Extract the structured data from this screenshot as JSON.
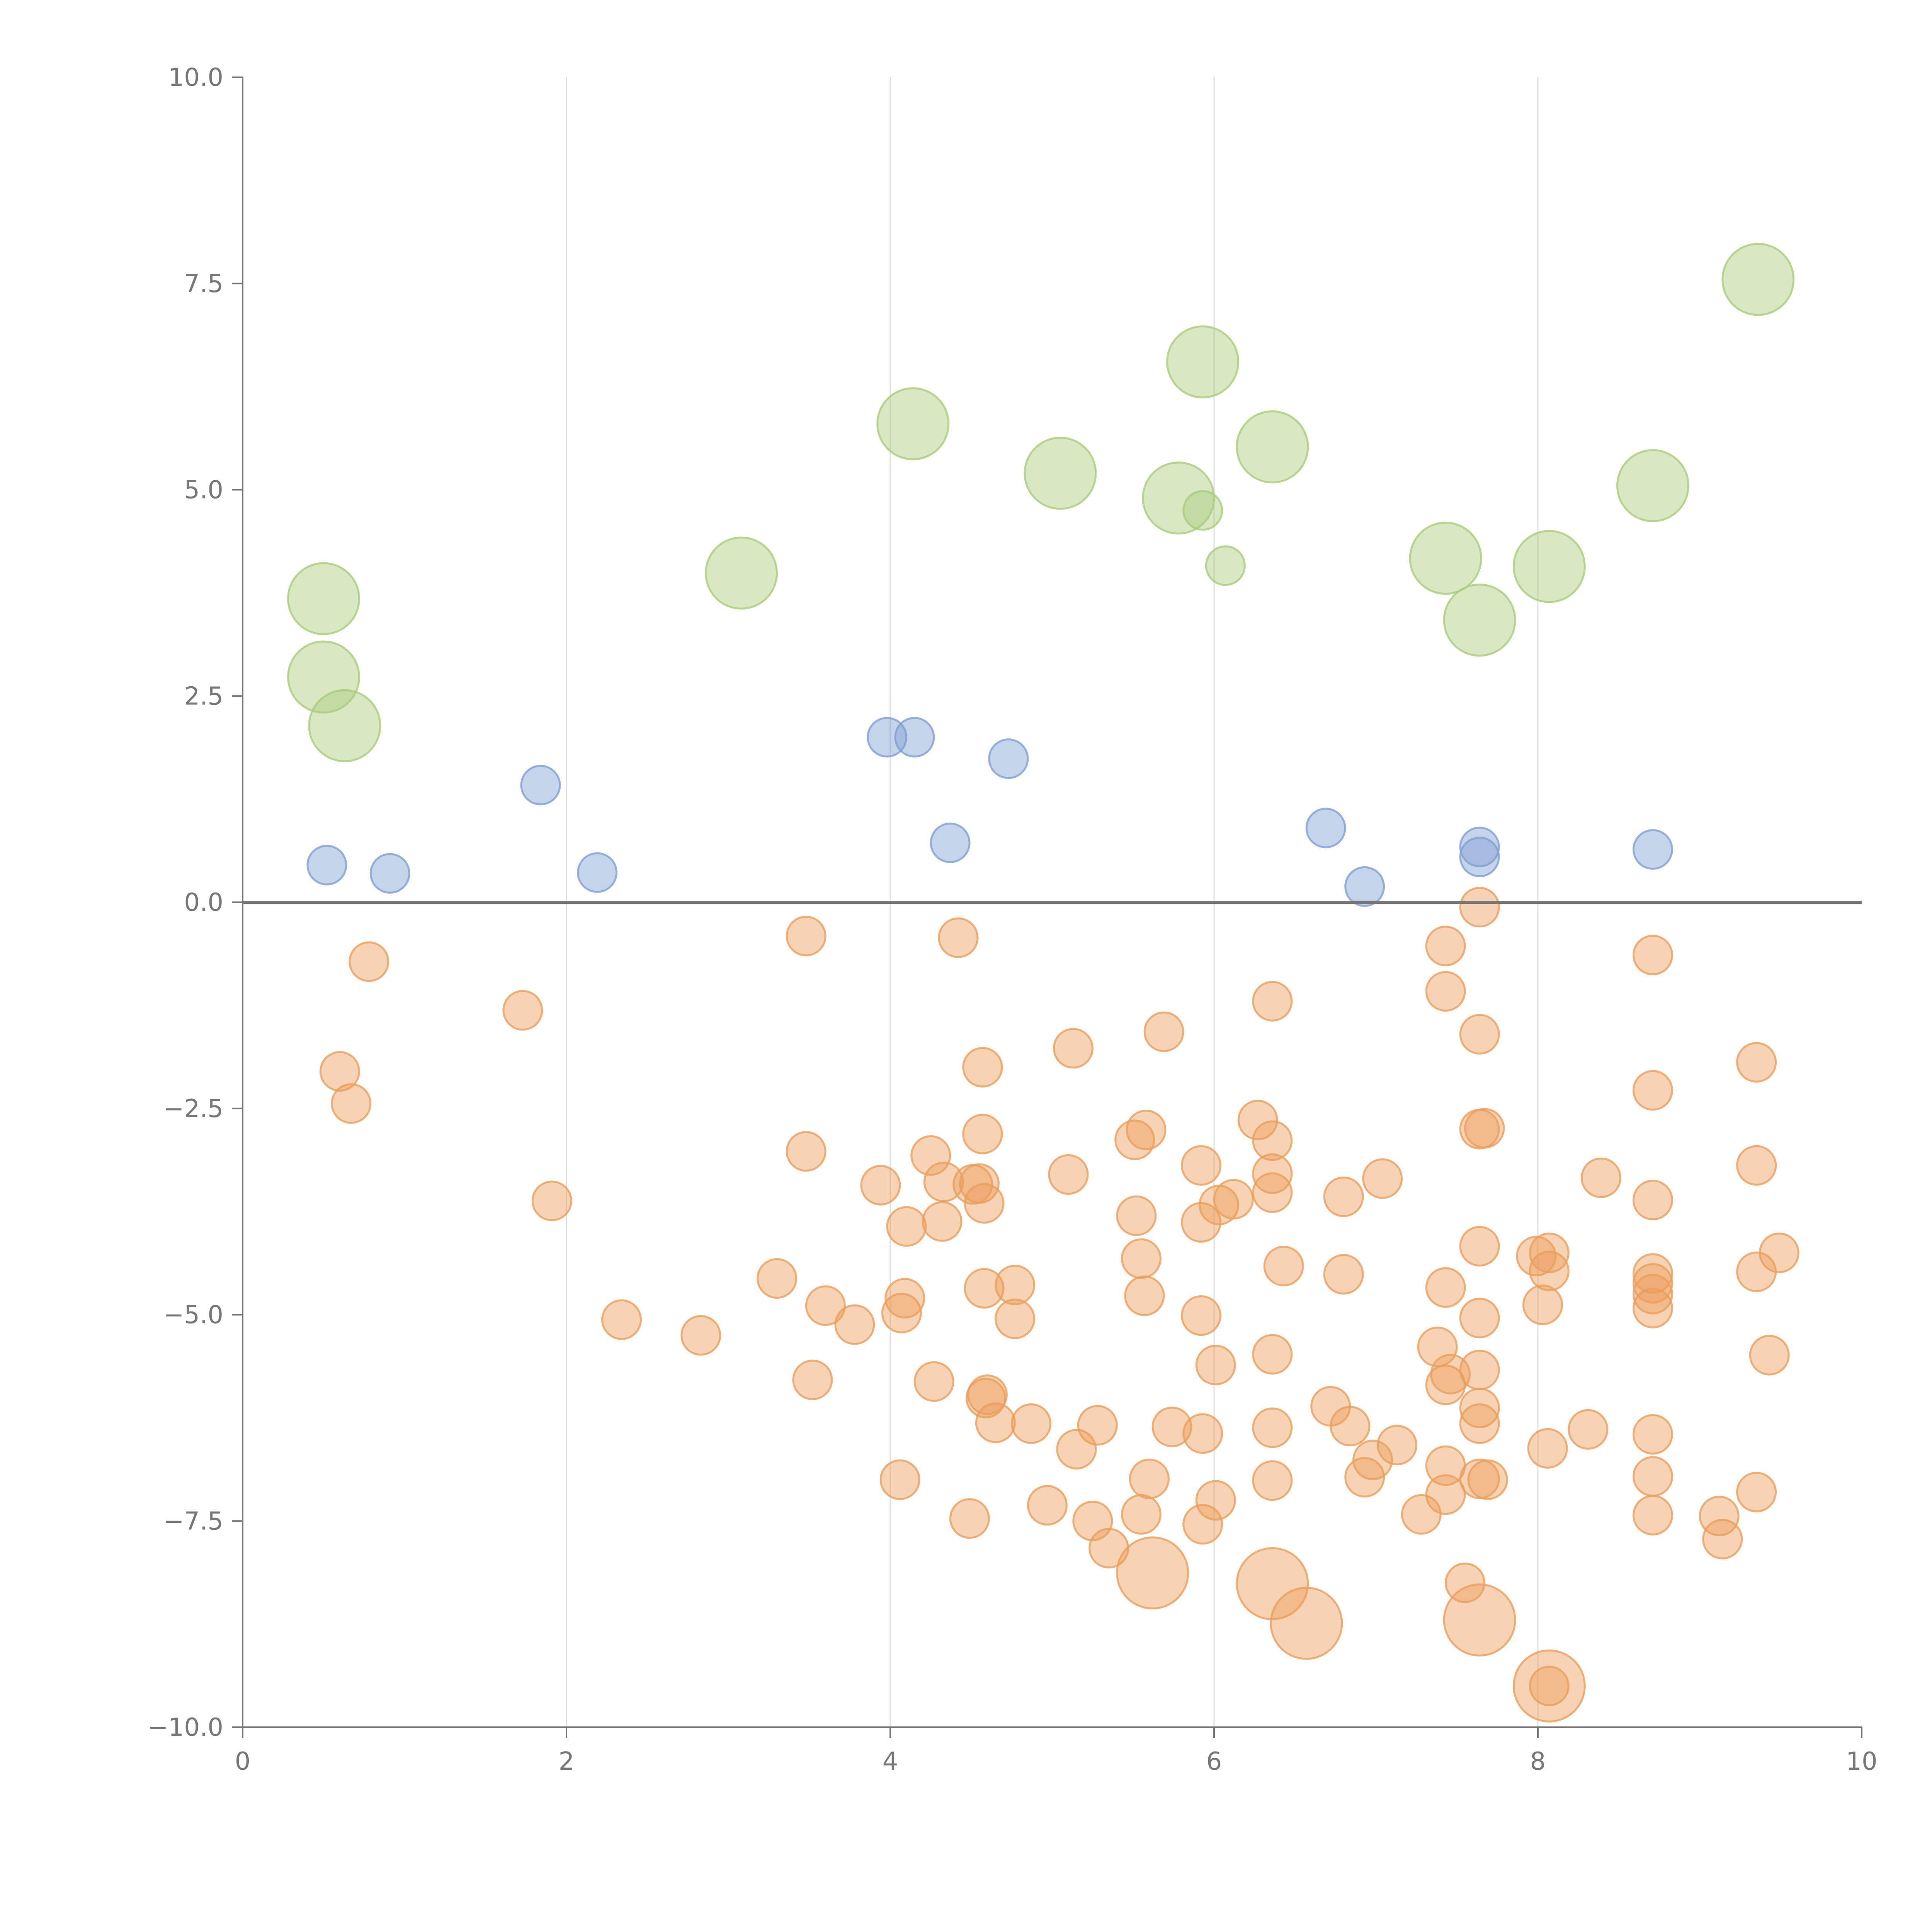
{
  "chart_data": {
    "type": "scatter",
    "title": "",
    "xlabel": "",
    "ylabel": "",
    "xlim": [
      0,
      10
    ],
    "ylim": [
      -10,
      10
    ],
    "x_ticks": [
      "0",
      "2",
      "4",
      "6",
      "8",
      "10"
    ],
    "y_ticks": [
      "10.0",
      "7.5",
      "5.0",
      "2.5",
      "0.0",
      "−2.5",
      "−5.0",
      "−7.5",
      "−10.0"
    ],
    "grid": "vertical lines at x ticks",
    "zero_line": true,
    "colors": {
      "green": "#a9cc79",
      "blue": "#7e9fd3",
      "orange": "#eb9d5a"
    },
    "series": [
      {
        "color": "blue",
        "size": "small",
        "points": [
          [
            0.52,
            0.45
          ],
          [
            0.91,
            0.35
          ],
          [
            1.84,
            1.42
          ],
          [
            2.19,
            0.36
          ],
          [
            3.98,
            2.0
          ],
          [
            4.15,
            2.0
          ],
          [
            4.37,
            0.72
          ],
          [
            4.73,
            1.74
          ],
          [
            6.69,
            0.9
          ],
          [
            6.93,
            0.19
          ],
          [
            7.64,
            0.67
          ],
          [
            7.64,
            0.55
          ],
          [
            8.71,
            0.64
          ]
        ]
      },
      {
        "color": "green",
        "size": "large",
        "points": [
          [
            0.5,
            3.68
          ],
          [
            0.5,
            2.73
          ],
          [
            0.63,
            2.14
          ],
          [
            3.08,
            3.99
          ],
          [
            4.14,
            5.8
          ],
          [
            5.05,
            5.2
          ],
          [
            5.78,
            4.9
          ],
          [
            5.93,
            6.55
          ],
          [
            6.36,
            5.52
          ],
          [
            7.43,
            4.17
          ],
          [
            7.64,
            3.42
          ],
          [
            8.07,
            4.07
          ],
          [
            8.71,
            5.05
          ],
          [
            9.36,
            7.55
          ]
        ]
      },
      {
        "color": "green",
        "size": "small",
        "points": [
          [
            5.93,
            4.75
          ],
          [
            6.07,
            4.08
          ]
        ]
      },
      {
        "color": "orange",
        "size": "small",
        "points": [
          [
            0.78,
            -0.72
          ],
          [
            0.6,
            -2.05
          ],
          [
            0.67,
            -2.44
          ],
          [
            1.73,
            -1.31
          ],
          [
            1.91,
            -3.62
          ],
          [
            2.34,
            -5.06
          ],
          [
            2.83,
            -5.25
          ],
          [
            3.3,
            -4.56
          ],
          [
            3.48,
            -0.41
          ],
          [
            3.48,
            -3.02
          ],
          [
            3.52,
            -5.79
          ],
          [
            3.6,
            -4.89
          ],
          [
            3.78,
            -5.12
          ],
          [
            3.94,
            -3.43
          ],
          [
            4.06,
            -7.0
          ],
          [
            4.07,
            -4.98
          ],
          [
            4.09,
            -4.8
          ],
          [
            4.1,
            -3.93
          ],
          [
            4.25,
            -3.07
          ],
          [
            4.27,
            -5.81
          ],
          [
            4.32,
            -3.87
          ],
          [
            4.33,
            -3.39
          ],
          [
            4.42,
            -0.43
          ],
          [
            4.49,
            -7.47
          ],
          [
            4.51,
            -3.42
          ],
          [
            4.55,
            -3.41
          ],
          [
            4.57,
            -2.0
          ],
          [
            4.57,
            -2.81
          ],
          [
            4.58,
            -3.65
          ],
          [
            4.58,
            -4.68
          ],
          [
            4.59,
            -6.01
          ],
          [
            4.6,
            -5.97
          ],
          [
            4.65,
            -6.31
          ],
          [
            4.77,
            -4.64
          ],
          [
            4.77,
            -5.05
          ],
          [
            4.87,
            -6.32
          ],
          [
            4.97,
            -7.31
          ],
          [
            5.13,
            -1.77
          ],
          [
            5.1,
            -3.3
          ],
          [
            5.15,
            -6.63
          ],
          [
            5.25,
            -7.5
          ],
          [
            5.28,
            -6.34
          ],
          [
            5.35,
            -7.83
          ],
          [
            5.51,
            -2.88
          ],
          [
            5.52,
            -3.8
          ],
          [
            5.55,
            -4.32
          ],
          [
            5.55,
            -7.42
          ],
          [
            5.58,
            -2.76
          ],
          [
            5.57,
            -4.77
          ],
          [
            5.6,
            -6.99
          ],
          [
            5.69,
            -1.57
          ],
          [
            5.74,
            -6.36
          ],
          [
            5.92,
            -3.19
          ],
          [
            5.92,
            -3.88
          ],
          [
            5.92,
            -5.01
          ],
          [
            5.93,
            -6.44
          ],
          [
            5.93,
            -7.54
          ],
          [
            6.01,
            -5.61
          ],
          [
            6.01,
            -7.25
          ],
          [
            6.03,
            -3.67
          ],
          [
            6.12,
            -3.6
          ],
          [
            6.27,
            -2.64
          ],
          [
            6.36,
            -1.2
          ],
          [
            6.36,
            -2.89
          ],
          [
            6.36,
            -3.29
          ],
          [
            6.36,
            -3.52
          ],
          [
            6.36,
            -5.48
          ],
          [
            6.36,
            -6.37
          ],
          [
            6.36,
            -7.01
          ],
          [
            6.43,
            -4.41
          ],
          [
            6.72,
            -6.11
          ],
          [
            6.8,
            -3.57
          ],
          [
            6.8,
            -4.51
          ],
          [
            6.84,
            -6.35
          ],
          [
            6.93,
            -6.97
          ],
          [
            6.98,
            -6.76
          ],
          [
            7.04,
            -3.35
          ],
          [
            7.13,
            -6.58
          ],
          [
            7.28,
            -7.42
          ],
          [
            7.38,
            -5.39
          ],
          [
            7.43,
            -0.53
          ],
          [
            7.43,
            -1.08
          ],
          [
            7.43,
            -4.67
          ],
          [
            7.43,
            -5.85
          ],
          [
            7.43,
            -6.83
          ],
          [
            7.43,
            -7.18
          ],
          [
            7.46,
            -5.72
          ],
          [
            7.55,
            -8.25
          ],
          [
            7.64,
            -0.06
          ],
          [
            7.64,
            -1.6
          ],
          [
            7.64,
            -2.75
          ],
          [
            7.64,
            -4.17
          ],
          [
            7.64,
            -5.04
          ],
          [
            7.64,
            -5.67
          ],
          [
            7.64,
            -6.13
          ],
          [
            7.64,
            -6.32
          ],
          [
            7.64,
            -6.99
          ],
          [
            7.67,
            -2.74
          ],
          [
            7.69,
            -7.0
          ],
          [
            7.99,
            -4.29
          ],
          [
            8.03,
            -4.88
          ],
          [
            8.06,
            -6.62
          ],
          [
            8.07,
            -4.25
          ],
          [
            8.07,
            -4.47
          ],
          [
            8.07,
            -9.5
          ],
          [
            8.31,
            -6.39
          ],
          [
            8.39,
            -3.34
          ],
          [
            8.71,
            -0.64
          ],
          [
            8.71,
            -2.28
          ],
          [
            8.71,
            -3.61
          ],
          [
            8.71,
            -4.5
          ],
          [
            8.71,
            -4.62
          ],
          [
            8.71,
            -4.75
          ],
          [
            8.71,
            -4.92
          ],
          [
            8.71,
            -6.45
          ],
          [
            8.71,
            -6.96
          ],
          [
            8.71,
            -7.43
          ],
          [
            9.12,
            -7.44
          ],
          [
            9.14,
            -7.72
          ],
          [
            9.35,
            -1.94
          ],
          [
            9.35,
            -3.19
          ],
          [
            9.35,
            -4.48
          ],
          [
            9.35,
            -7.15
          ],
          [
            9.43,
            -5.49
          ],
          [
            9.49,
            -4.25
          ]
        ]
      },
      {
        "color": "orange",
        "size": "large",
        "points": [
          [
            5.62,
            -8.13
          ],
          [
            6.36,
            -8.26
          ],
          [
            6.57,
            -8.74
          ],
          [
            7.64,
            -8.7
          ],
          [
            8.07,
            -9.5
          ]
        ]
      }
    ]
  }
}
